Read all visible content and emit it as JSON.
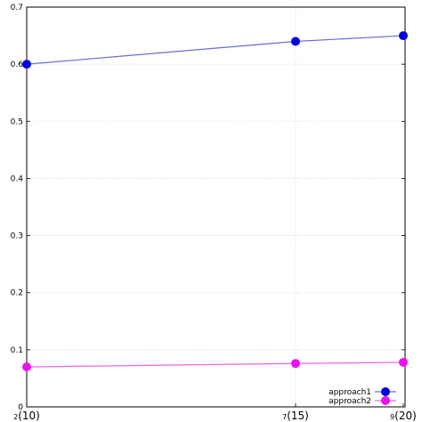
{
  "chart_data": {
    "type": "line",
    "title": "",
    "xlabel": "",
    "ylabel": "",
    "x_ticks": [
      {
        "sub": "2",
        "main": "(10)"
      },
      {
        "sub": "7",
        "main": "(15)"
      },
      {
        "sub": "9",
        "main": "(20)"
      }
    ],
    "y_ticks": [
      "0",
      "0.1",
      "0.2",
      "0.3",
      "0.4",
      "0.5",
      "0.6",
      "0.7"
    ],
    "ylim": [
      0,
      0.7
    ],
    "grid": true,
    "legend_position": "bottom-right",
    "series": [
      {
        "name": "approach1",
        "values": [
          0.6,
          0.64,
          0.65
        ],
        "line_color": "#6b6bd8",
        "marker_color": "#0000e0"
      },
      {
        "name": "approach2",
        "values": [
          0.07,
          0.076,
          0.078
        ],
        "line_color": "#ee66ee",
        "marker_color": "#ee11ee"
      }
    ]
  }
}
